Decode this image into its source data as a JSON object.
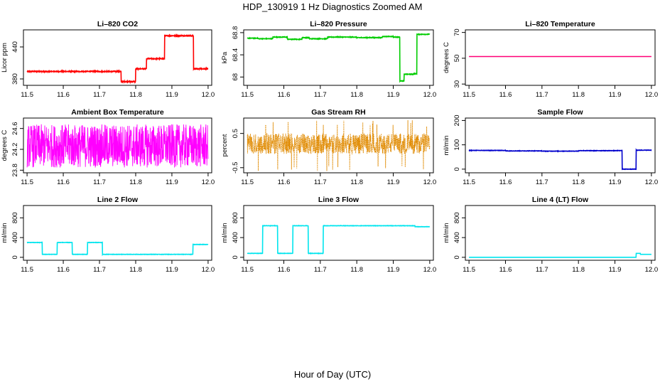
{
  "title": "HDP_130919  1 Hz Diagnostics Zoomed AM",
  "xlabel": "Hour of Day (UTC)",
  "chart_data": [
    {
      "type": "line",
      "title": "Li–820 CO2",
      "ylabel": "Licor ppm",
      "color": "#ff0000",
      "xlim": [
        11.49,
        12.01
      ],
      "ylim": [
        368,
        472
      ],
      "yticks": [
        380,
        440
      ],
      "xticks": [
        11.5,
        11.6,
        11.7,
        11.8,
        11.9,
        12.0
      ],
      "noise": 0.8,
      "series": [
        {
          "steps": [
            [
              11.5,
              394
            ],
            [
              11.76,
              375
            ],
            [
              11.8,
              399
            ],
            [
              11.83,
              418
            ],
            [
              11.88,
              461
            ],
            [
              11.96,
              399
            ],
            [
              12.0,
              399
            ]
          ]
        }
      ]
    },
    {
      "type": "line",
      "title": "Li–820 Pressure",
      "ylabel": "kPa",
      "color": "#00cc00",
      "xlim": [
        11.49,
        12.01
      ],
      "ylim": [
        67.85,
        68.85
      ],
      "yticks": [
        68.0,
        68.4,
        68.8
      ],
      "xticks": [
        11.5,
        11.6,
        11.7,
        11.8,
        11.9,
        12.0
      ],
      "noise": 0.005,
      "series": [
        {
          "steps": [
            [
              11.5,
              68.7
            ],
            [
              11.53,
              68.69
            ],
            [
              11.57,
              68.72
            ],
            [
              11.61,
              68.68
            ],
            [
              11.65,
              68.71
            ],
            [
              11.67,
              68.69
            ],
            [
              11.72,
              68.72
            ],
            [
              11.8,
              68.71
            ],
            [
              11.87,
              68.73
            ],
            [
              11.9,
              68.72
            ],
            [
              11.918,
              67.93
            ],
            [
              11.93,
              68.05
            ],
            [
              11.955,
              68.06
            ],
            [
              11.965,
              68.77
            ],
            [
              12.0,
              68.77
            ]
          ]
        }
      ]
    },
    {
      "type": "line",
      "title": "Li–820 Temperature",
      "ylabel": "degrees C",
      "color": "#ff0077",
      "xlim": [
        11.49,
        12.01
      ],
      "ylim": [
        29,
        72
      ],
      "yticks": [
        30,
        50,
        70
      ],
      "xticks": [
        11.5,
        11.6,
        11.7,
        11.8,
        11.9,
        12.0
      ],
      "noise": 0,
      "series": [
        {
          "steps": [
            [
              11.5,
              51.3
            ],
            [
              12.0,
              51.3
            ]
          ]
        }
      ]
    },
    {
      "type": "line",
      "title": "Ambient Box Temperature",
      "ylabel": "degrees C",
      "color": "#ff00ff",
      "xlim": [
        11.49,
        12.01
      ],
      "ylim": [
        23.75,
        24.8
      ],
      "yticks": [
        23.8,
        24.2,
        24.6
      ],
      "xticks": [
        11.5,
        11.6,
        11.7,
        11.8,
        11.9,
        12.0
      ],
      "noise": 0,
      "osc": [
        23.85,
        24.68
      ],
      "series": [
        {
          "steps": [
            [
              11.5,
              24.25
            ],
            [
              12.0,
              24.25
            ]
          ]
        }
      ]
    },
    {
      "type": "line",
      "title": "Gas Stream RH",
      "ylabel": "percent",
      "color": "#e08a00",
      "xlim": [
        11.49,
        12.01
      ],
      "ylim": [
        -0.65,
        0.95
      ],
      "yticks": [
        -0.5,
        0.5
      ],
      "xticks": [
        11.5,
        11.6,
        11.7,
        11.8,
        11.9,
        12.0
      ],
      "noise": 0,
      "dense": [
        -0.1,
        0.5
      ],
      "series": [
        {
          "steps": [
            [
              11.5,
              0.1
            ],
            [
              12.0,
              0.1
            ]
          ]
        }
      ]
    },
    {
      "type": "line",
      "title": "Sample Flow",
      "ylabel": "ml/min",
      "color": "#0000cc",
      "xlim": [
        11.49,
        12.01
      ],
      "ylim": [
        -15,
        210
      ],
      "yticks": [
        0,
        100,
        200
      ],
      "xticks": [
        11.5,
        11.6,
        11.7,
        11.8,
        11.9,
        12.0
      ],
      "noise": 0.8,
      "series": [
        {
          "steps": [
            [
              11.5,
              77
            ],
            [
              11.6,
              75
            ],
            [
              11.7,
              74
            ],
            [
              11.8,
              76
            ],
            [
              11.916,
              77
            ],
            [
              11.92,
              0
            ],
            [
              11.955,
              0
            ],
            [
              11.958,
              78
            ],
            [
              12.0,
              78
            ]
          ]
        }
      ]
    },
    {
      "type": "line",
      "title": "Line 2 Flow",
      "ylabel": "ml/min",
      "color": "#00e5ee",
      "xlim": [
        11.49,
        12.01
      ],
      "ylim": [
        -60,
        1050
      ],
      "yticks": [
        0,
        400,
        800
      ],
      "xticks": [
        11.5,
        11.6,
        11.7,
        11.8,
        11.9,
        12.0
      ],
      "noise": 3,
      "series": [
        {
          "steps": [
            [
              11.5,
              300
            ],
            [
              11.542,
              60
            ],
            [
              11.583,
              300
            ],
            [
              11.625,
              60
            ],
            [
              11.667,
              300
            ],
            [
              11.708,
              60
            ],
            [
              11.958,
              260
            ],
            [
              12.0,
              260
            ]
          ]
        }
      ]
    },
    {
      "type": "line",
      "title": "Line 3 Flow",
      "ylabel": "ml/min",
      "color": "#00e5ee",
      "xlim": [
        11.49,
        12.01
      ],
      "ylim": [
        -60,
        1050
      ],
      "yticks": [
        0,
        400,
        800
      ],
      "xticks": [
        11.5,
        11.6,
        11.7,
        11.8,
        11.9,
        12.0
      ],
      "noise": 3,
      "series": [
        {
          "steps": [
            [
              11.5,
              80
            ],
            [
              11.542,
              640
            ],
            [
              11.583,
              80
            ],
            [
              11.625,
              640
            ],
            [
              11.667,
              80
            ],
            [
              11.708,
              640
            ],
            [
              11.96,
              620
            ],
            [
              12.0,
              620
            ]
          ]
        }
      ]
    },
    {
      "type": "line",
      "title": "Line 4 (LT) Flow",
      "ylabel": "ml/min",
      "color": "#00e5ee",
      "xlim": [
        11.49,
        12.01
      ],
      "ylim": [
        -60,
        1050
      ],
      "yticks": [
        0,
        400,
        800
      ],
      "xticks": [
        11.5,
        11.6,
        11.7,
        11.8,
        11.9,
        12.0
      ],
      "noise": 0,
      "series": [
        {
          "steps": [
            [
              11.5,
              0
            ],
            [
              11.955,
              0
            ],
            [
              11.958,
              80
            ],
            [
              11.97,
              60
            ],
            [
              12.0,
              60
            ]
          ]
        }
      ]
    }
  ]
}
